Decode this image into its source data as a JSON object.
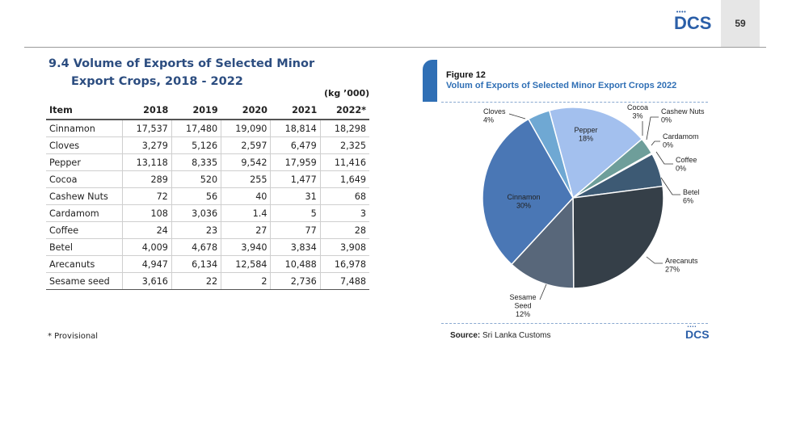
{
  "header": {
    "logo_text": "DCS",
    "logo_dots": "••••",
    "page_number": "59"
  },
  "section": {
    "title_line1": "9.4 Volume of Exports of Selected Minor",
    "title_line2": "Export Crops, 2018 - 2022",
    "unit": "(kg ’000)"
  },
  "table": {
    "headers": [
      "Item",
      "2018",
      "2019",
      "2020",
      "2021",
      "2022*"
    ],
    "rows": [
      [
        "Cinnamon",
        "17,537",
        "17,480",
        "19,090",
        "18,814",
        "18,298"
      ],
      [
        "Cloves",
        "3,279",
        "5,126",
        "2,597",
        "6,479",
        "2,325"
      ],
      [
        "Pepper",
        "13,118",
        "8,335",
        "9,542",
        "17,959",
        "11,416"
      ],
      [
        "Cocoa",
        "289",
        "520",
        "255",
        "1,477",
        "1,649"
      ],
      [
        "Cashew Nuts",
        "72",
        "56",
        "40",
        "31",
        "68"
      ],
      [
        "Cardamom",
        "108",
        "3,036",
        "1.4",
        "5",
        "3"
      ],
      [
        "Coffee",
        "24",
        "23",
        "27",
        "77",
        "28"
      ],
      [
        "Betel",
        "4,009",
        "4,678",
        "3,940",
        "3,834",
        "3,908"
      ],
      [
        "Arecanuts",
        "4,947",
        "6,134",
        "12,584",
        "10,488",
        "16,978"
      ],
      [
        "Sesame seed",
        "3,616",
        "22",
        "2",
        "2,736",
        "7,488"
      ]
    ]
  },
  "footnote": "* Provisional",
  "figure": {
    "number": "Figure 12",
    "title": "Volum of Exports of Selected Minor Export Crops 2022",
    "source_label": "Source:",
    "source_text": "Sri Lanka  Customs"
  },
  "chart_data": {
    "type": "pie",
    "title": "Volum of Exports of Selected Minor Export Crops 2022",
    "slices": [
      {
        "label": "Cloves",
        "pct_text": "4%",
        "value": 4,
        "color": "#6fa8d3"
      },
      {
        "label": "Pepper",
        "pct_text": "18%",
        "value": 18,
        "color": "#a3c0ee"
      },
      {
        "label": "Cocoa",
        "pct_text": "3%",
        "value": 3,
        "color": "#6e9e9a"
      },
      {
        "label": "Cashew Nuts",
        "pct_text": "0%",
        "value": 0.1,
        "color": "#2b4a63"
      },
      {
        "label": "Cardamom",
        "pct_text": "0%",
        "value": 0.05,
        "color": "#2b4a63"
      },
      {
        "label": "Coffee",
        "pct_text": "0%",
        "value": 0.05,
        "color": "#2b4a63"
      },
      {
        "label": "Betel",
        "pct_text": "6%",
        "value": 6,
        "color": "#3d5a74"
      },
      {
        "label": "Arecanuts",
        "pct_text": "27%",
        "value": 27,
        "color": "#353f48"
      },
      {
        "label": "Sesame Seed",
        "pct_text": "12%",
        "value": 12,
        "color": "#58677a"
      },
      {
        "label": "Cinnamon",
        "pct_text": "30%",
        "value": 30,
        "color": "#4a77b5"
      }
    ]
  }
}
